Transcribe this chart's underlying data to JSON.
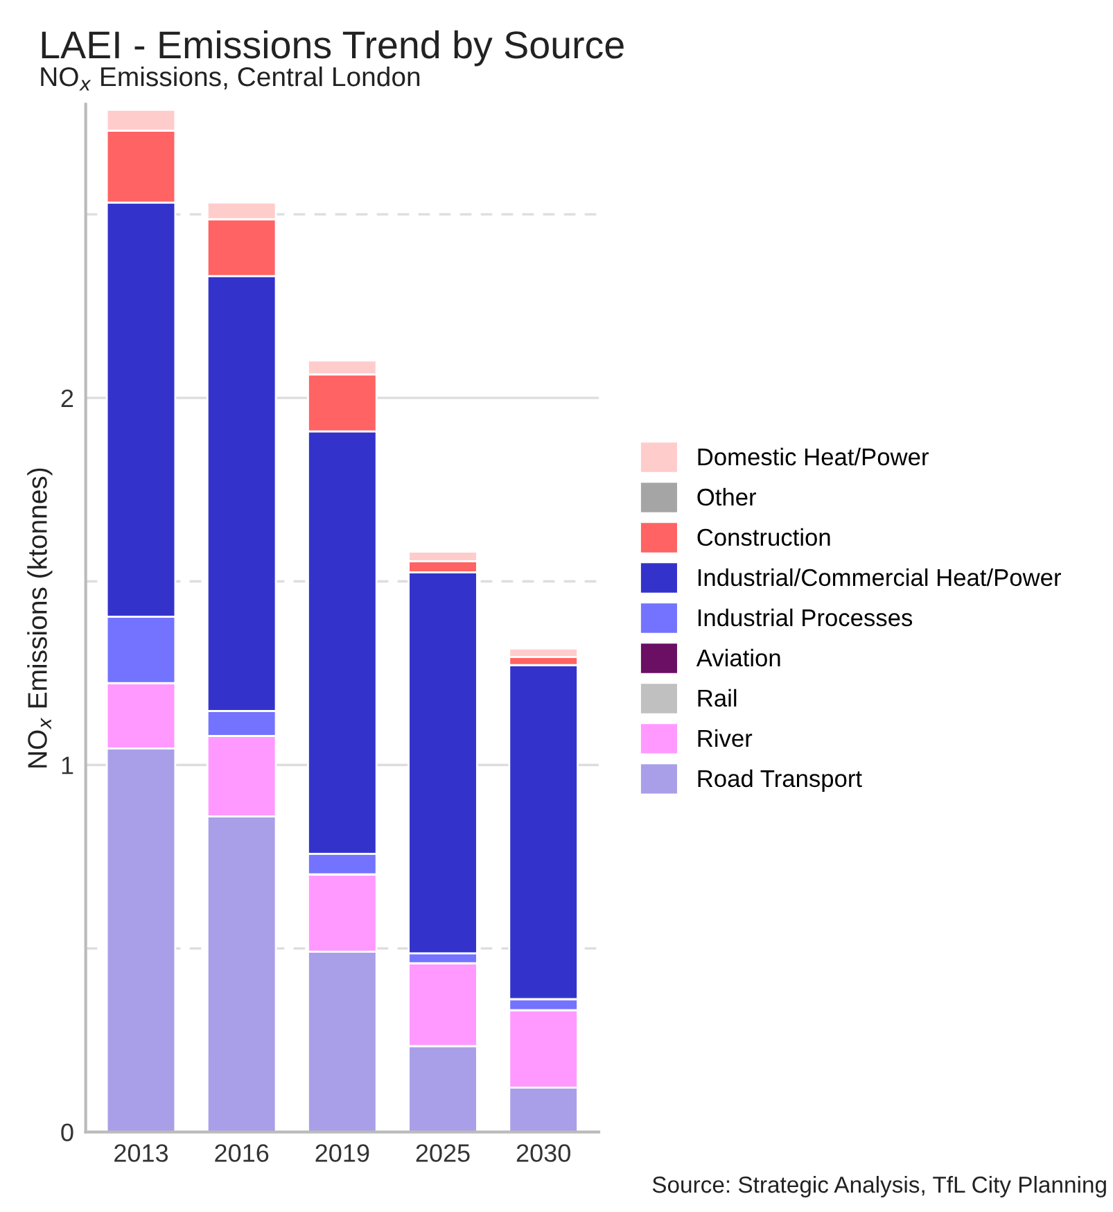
{
  "chart_data": {
    "type": "bar",
    "stacked": true,
    "title": "LAEI - Emissions Trend by Source",
    "subtitle": "NO$_{x}$ Emissions, Central London",
    "ylabel": "NO$_{x}$ Emissions (ktonnes)",
    "categories": [
      "2013",
      "2016",
      "2019",
      "2025",
      "2030"
    ],
    "series": [
      {
        "name": "Road Transport",
        "color": "#a99fe8",
        "values": [
          1.045,
          0.86,
          0.491,
          0.234,
          0.121
        ]
      },
      {
        "name": "River",
        "color": "#ff99ff",
        "values": [
          0.178,
          0.219,
          0.211,
          0.226,
          0.211
        ]
      },
      {
        "name": "Rail",
        "color": "#c0c0c0",
        "values": [
          0,
          0,
          0,
          0,
          0
        ]
      },
      {
        "name": "Aviation",
        "color": "#6a0f64",
        "values": [
          0,
          0,
          0,
          0,
          0
        ]
      },
      {
        "name": "Industrial Processes",
        "color": "#7373ff",
        "values": [
          0.181,
          0.068,
          0.056,
          0.027,
          0.03
        ]
      },
      {
        "name": "Industrial/Commercial Heat/Power",
        "color": "#3333cc",
        "values": [
          1.128,
          1.185,
          1.151,
          1.038,
          0.91
        ]
      },
      {
        "name": "Construction",
        "color": "#ff6363",
        "values": [
          0.196,
          0.155,
          0.155,
          0.03,
          0.022
        ]
      },
      {
        "name": "Other",
        "color": "#a5a5a5",
        "values": [
          0,
          0,
          0,
          0,
          0
        ]
      },
      {
        "name": "Domestic Heat/Power",
        "color": "#ffcccc",
        "values": [
          0.057,
          0.045,
          0.038,
          0.026,
          0.023
        ]
      }
    ],
    "ylim": [
      0,
      2.8
    ],
    "yticks": [
      0,
      {
        "value": 0.5,
        "label": null
      },
      1,
      {
        "value": 1.5,
        "label": null
      },
      2,
      {
        "value": 2.5,
        "label": null
      }
    ],
    "grid": "y",
    "legend": "right",
    "annotations": [
      "Source: Strategic Analysis, TfL City Planning"
    ]
  }
}
